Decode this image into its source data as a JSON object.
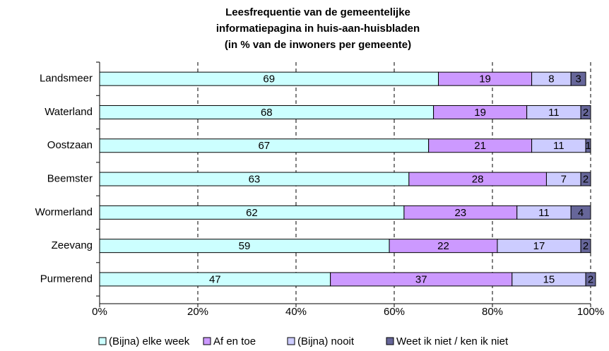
{
  "chart_data": {
    "type": "stacked-bar-horizontal",
    "title": [
      "Leesfrequentie van de gemeentelijke",
      "informatiepagina in huis-aan-huisbladen",
      "(in % van de inwoners per gemeente)"
    ],
    "categories": [
      "Landsmeer",
      "Waterland",
      "Oostzaan",
      "Beemster",
      "Wormerland",
      "Zeevang",
      "Purmerend"
    ],
    "series": [
      {
        "name": "(Bijna) elke week",
        "color": "#ccffff",
        "label_color": "#000000",
        "values": [
          69,
          68,
          67,
          63,
          62,
          59,
          47
        ]
      },
      {
        "name": "Af en toe",
        "color": "#cc99ff",
        "label_color": "#ffffff",
        "values": [
          19,
          19,
          21,
          28,
          23,
          22,
          37
        ]
      },
      {
        "name": "(Bijna) nooit",
        "color": "#ccccff",
        "label_color": "#000000",
        "values": [
          8,
          11,
          11,
          7,
          11,
          17,
          15
        ]
      },
      {
        "name": "Weet ik niet / ken ik niet",
        "color": "#666699",
        "label_color": "#ffffff",
        "values": [
          3,
          2,
          1,
          2,
          4,
          2,
          2
        ]
      }
    ],
    "xlim": [
      0,
      100
    ],
    "xticks": [
      {
        "value": 0,
        "label": "0%"
      },
      {
        "value": 20,
        "label": "20%"
      },
      {
        "value": 40,
        "label": "40%"
      },
      {
        "value": 60,
        "label": "60%"
      },
      {
        "value": 80,
        "label": "80%"
      },
      {
        "value": 100,
        "label": "100%"
      }
    ],
    "grid": true,
    "legend": "bottom"
  }
}
